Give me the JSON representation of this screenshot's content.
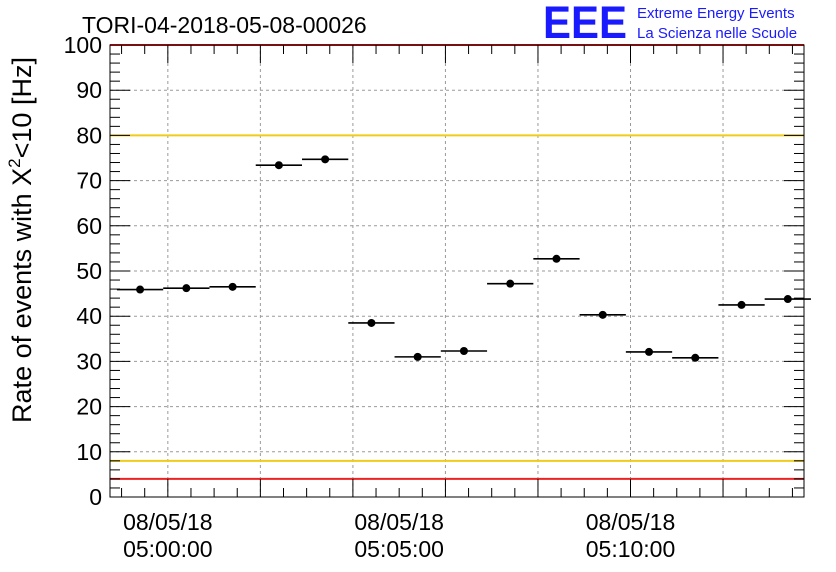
{
  "chart_data": {
    "type": "scatter",
    "title": "TORI-04-2018-05-08-00026",
    "ylabel_main": "Rate of events with X",
    "ylabel_sup": "2",
    "ylabel_tail": "<10 [Hz]",
    "xlabel": "",
    "ylim": [
      0,
      100
    ],
    "yticks": [
      0,
      10,
      20,
      30,
      40,
      50,
      60,
      70,
      80,
      90,
      100
    ],
    "xlim_minutes": [
      -1.25,
      13.75
    ],
    "xticks": [
      {
        "minute": 0,
        "date": "08/05/18",
        "time": "05:00:00"
      },
      {
        "minute": 5,
        "date": "08/05/18",
        "time": "05:05:00"
      },
      {
        "minute": 10,
        "date": "08/05/18",
        "time": "05:10:00"
      }
    ],
    "bin_width_minutes": 1,
    "points": [
      {
        "t": "05:00:00",
        "minute": -0.6,
        "y": 45.9
      },
      {
        "t": "05:00:00",
        "minute": 0.4,
        "y": 46.2
      },
      {
        "t": "05:00:00",
        "minute": 1.4,
        "y": 46.5
      },
      {
        "t": "05:00:00",
        "minute": 2.4,
        "y": 73.4
      },
      {
        "t": "05:00:00",
        "minute": 3.4,
        "y": 74.7
      },
      {
        "t": "05:05:00",
        "minute": 4.4,
        "y": 38.5
      },
      {
        "t": "05:05:00",
        "minute": 5.4,
        "y": 31.0
      },
      {
        "t": "05:05:00",
        "minute": 6.4,
        "y": 32.3
      },
      {
        "t": "05:05:00",
        "minute": 7.4,
        "y": 47.2
      },
      {
        "t": "05:05:00",
        "minute": 8.4,
        "y": 52.7
      },
      {
        "t": "05:10:00",
        "minute": 9.4,
        "y": 40.3
      },
      {
        "t": "05:10:00",
        "minute": 10.4,
        "y": 32.1
      },
      {
        "t": "05:10:00",
        "minute": 11.4,
        "y": 30.8
      },
      {
        "t": "05:10:00",
        "minute": 12.4,
        "y": 42.5
      },
      {
        "t": "05:10:00",
        "minute": 13.4,
        "y": 43.8
      }
    ],
    "reference_lines": [
      {
        "y": 100,
        "color": "#ee2222"
      },
      {
        "y": 80,
        "color": "#f0cc1a"
      },
      {
        "y": 8,
        "color": "#f0cc1a"
      },
      {
        "y": 4,
        "color": "#ee2222"
      }
    ],
    "grid": true,
    "marker_color": "#000000"
  },
  "logo": {
    "mark": "EEE",
    "line1": "Extreme Energy Events",
    "line2": "La Scienza nelle Scuole",
    "color": "#1a1aff"
  }
}
